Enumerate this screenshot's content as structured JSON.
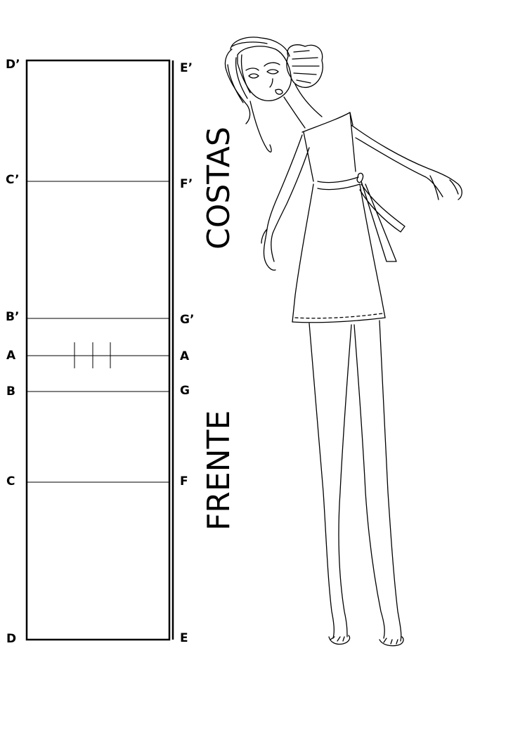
{
  "left_points": [
    {
      "id": "D-prime",
      "label": "D’"
    },
    {
      "id": "C-prime",
      "label": "C’"
    },
    {
      "id": "B-prime",
      "label": "B’"
    },
    {
      "id": "A-left",
      "label": "A"
    },
    {
      "id": "B",
      "label": "B"
    },
    {
      "id": "C",
      "label": "C"
    },
    {
      "id": "D",
      "label": "D"
    }
  ],
  "right_points": [
    {
      "id": "E-prime",
      "label": "E’"
    },
    {
      "id": "F-prime",
      "label": "F’"
    },
    {
      "id": "G-prime",
      "label": "G’"
    },
    {
      "id": "A-right",
      "label": "A"
    },
    {
      "id": "G",
      "label": "G"
    },
    {
      "id": "F",
      "label": "F"
    },
    {
      "id": "E",
      "label": "E"
    }
  ],
  "sections": {
    "back": "COSTAS",
    "front": "FRENTE"
  },
  "tuck_marks": 3
}
